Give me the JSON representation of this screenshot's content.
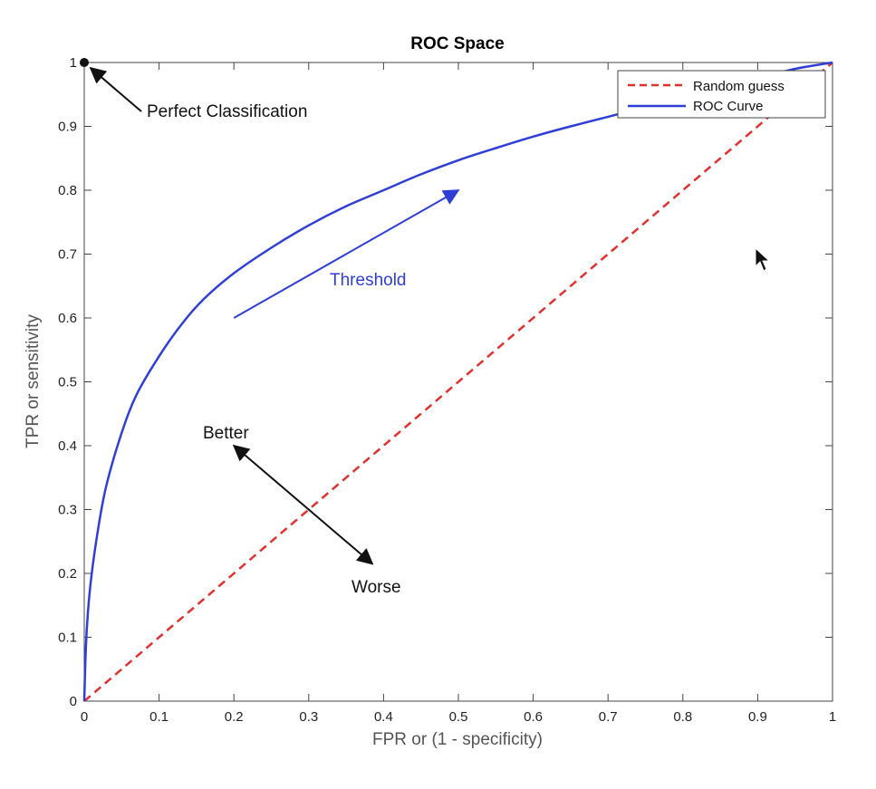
{
  "chart_data": {
    "type": "line",
    "title": "ROC Space",
    "xlabel": "FPR or (1 - specificity)",
    "ylabel": "TPR or sensitivity",
    "xlim": [
      0,
      1
    ],
    "ylim": [
      0,
      1
    ],
    "xticks": [
      0,
      0.1,
      0.2,
      0.3,
      0.4,
      0.5,
      0.6,
      0.7,
      0.8,
      0.9,
      1
    ],
    "xtick_labels": [
      "0",
      "0.1",
      "0.2",
      "0.3",
      "0.4",
      "0.5",
      "0.6",
      "0.7",
      "0.8",
      "0.9",
      "1"
    ],
    "yticks": [
      0,
      0.1,
      0.2,
      0.3,
      0.4,
      0.5,
      0.6,
      0.7,
      0.8,
      0.9,
      1
    ],
    "ytick_labels": [
      "0",
      "0.1",
      "0.2",
      "0.3",
      "0.4",
      "0.5",
      "0.6",
      "0.7",
      "0.8",
      "0.9",
      "1"
    ],
    "grid": false,
    "legend_position": "top-right",
    "series": [
      {
        "name": "Random guess",
        "style": "dashed",
        "color": "#e0312f",
        "x": [
          0,
          1
        ],
        "y": [
          0,
          1
        ]
      },
      {
        "name": "ROC Curve",
        "style": "solid",
        "color": "#2f3fd6",
        "x": [
          0,
          0.002,
          0.005,
          0.01,
          0.02,
          0.03,
          0.05,
          0.07,
          0.1,
          0.13,
          0.16,
          0.2,
          0.25,
          0.3,
          0.35,
          0.4,
          0.45,
          0.5,
          0.55,
          0.6,
          0.65,
          0.7,
          0.75,
          0.8,
          0.85,
          0.9,
          0.95,
          1
        ],
        "y": [
          0,
          0.08,
          0.14,
          0.2,
          0.28,
          0.34,
          0.42,
          0.48,
          0.54,
          0.59,
          0.63,
          0.67,
          0.71,
          0.745,
          0.775,
          0.8,
          0.825,
          0.847,
          0.866,
          0.884,
          0.9,
          0.915,
          0.93,
          0.945,
          0.96,
          0.975,
          0.99,
          1
        ]
      }
    ],
    "annotations": {
      "perfect": {
        "text": "Perfect Classification",
        "point": [
          0,
          1
        ]
      },
      "threshold": {
        "text": "Threshold",
        "arrow_from": [
          0.2,
          0.6
        ],
        "arrow_to": [
          0.5,
          0.8
        ]
      },
      "better": {
        "text": "Better"
      },
      "worse": {
        "text": "Worse"
      },
      "better_worse_arrow": {
        "from": [
          0.2,
          0.4
        ],
        "to": [
          0.385,
          0.215
        ]
      }
    }
  }
}
